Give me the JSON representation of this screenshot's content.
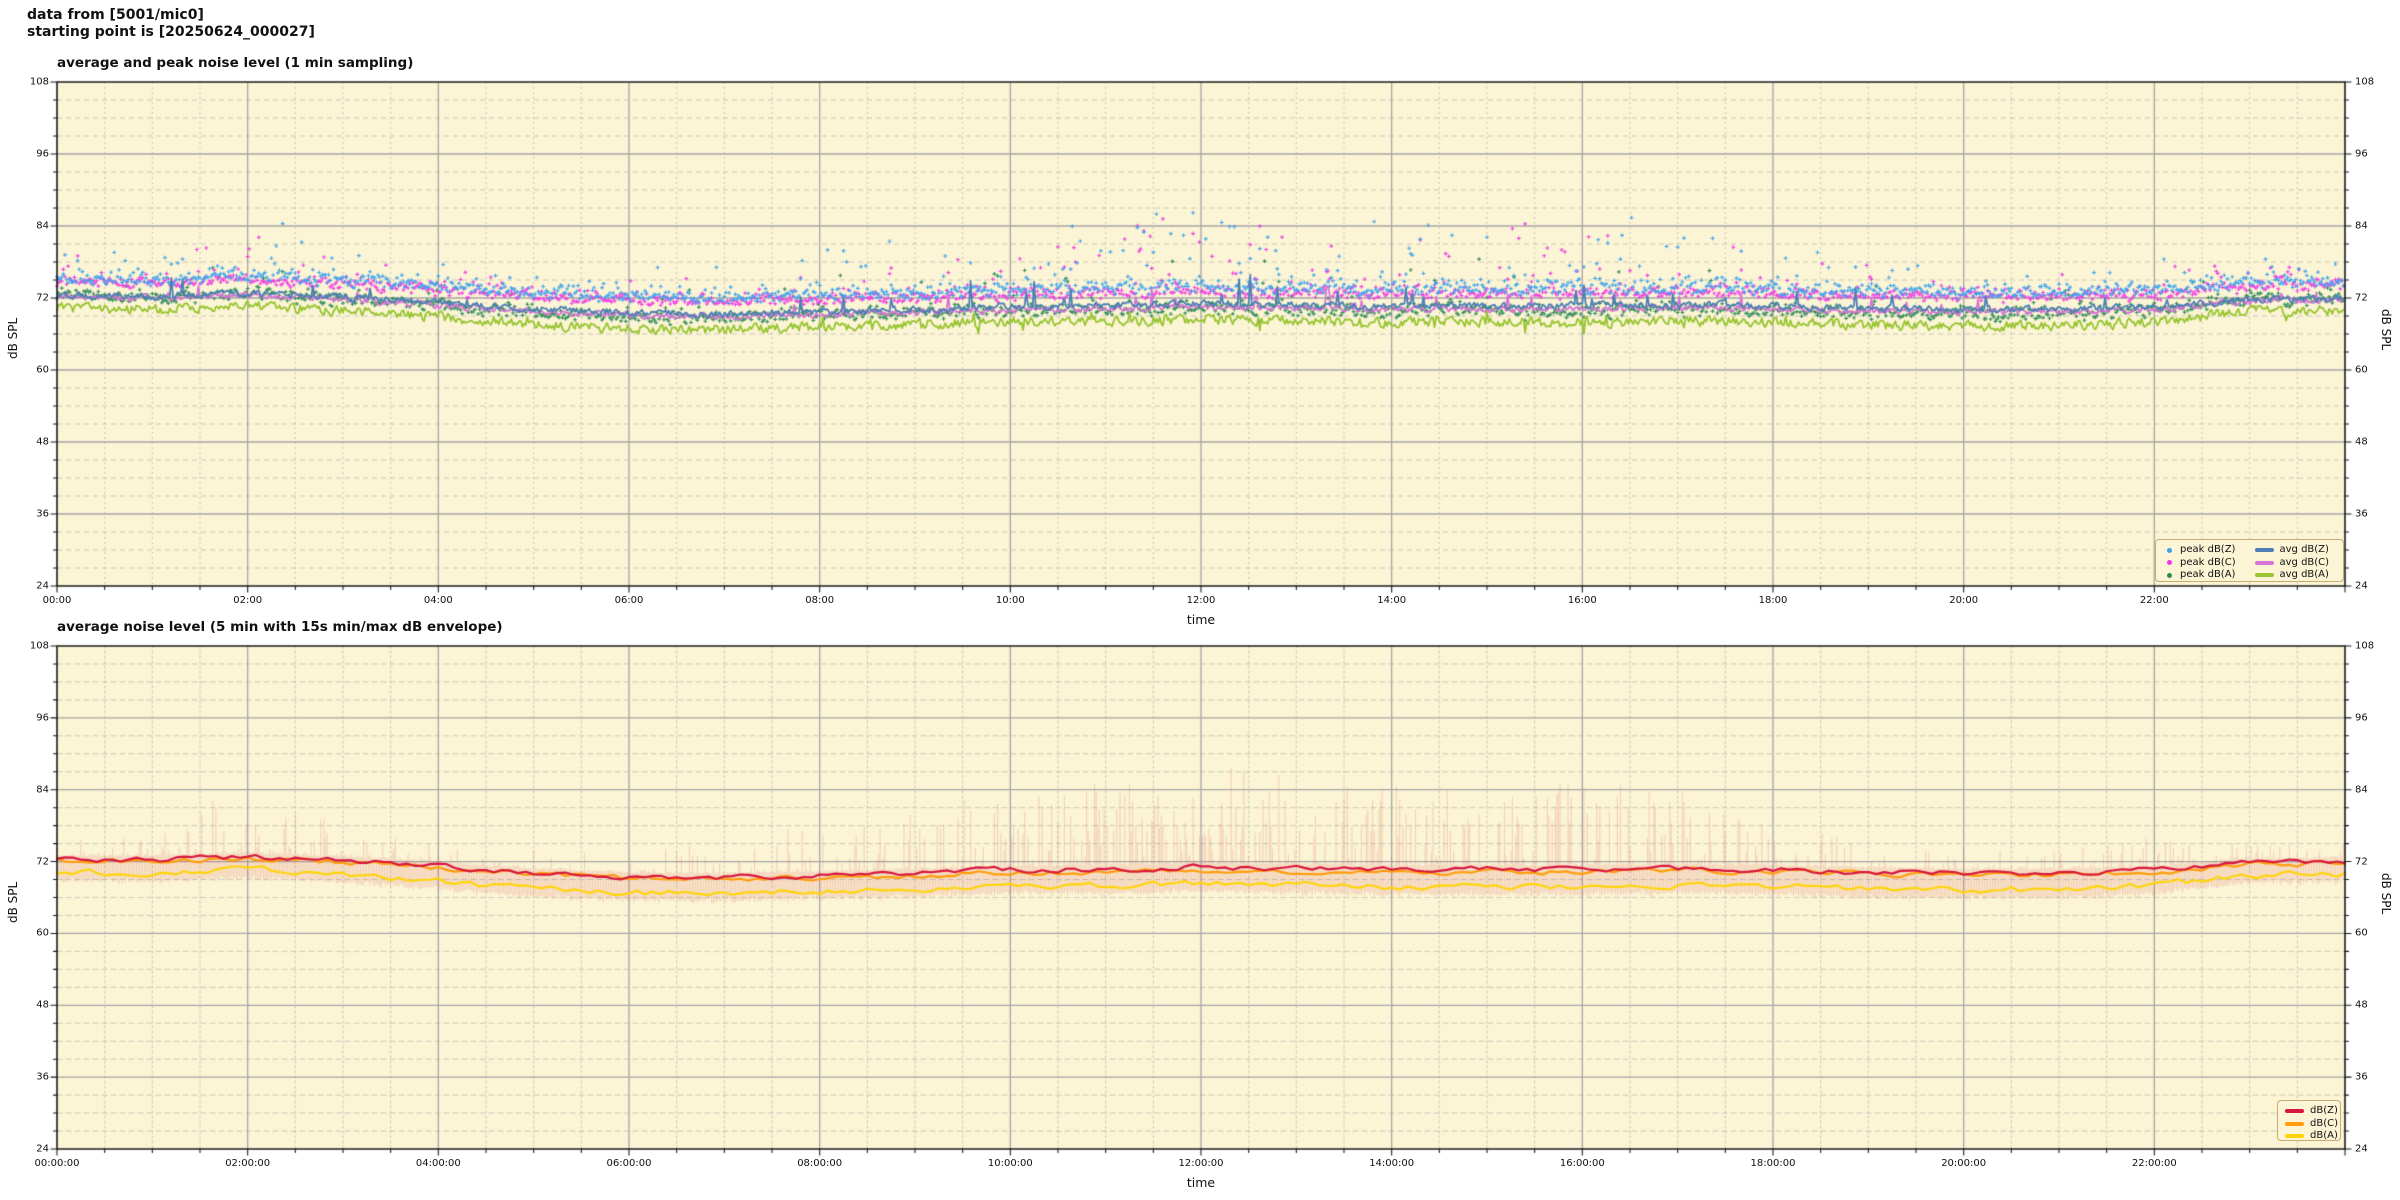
{
  "header": {
    "line1": "data from [5001/mic0]",
    "line2": "starting point is [20250624_000027]"
  },
  "chart_data": [
    {
      "type": "scatter+line",
      "title": "average and peak noise level (1 min sampling)",
      "xlabel": "time",
      "ylabel_left": "dB SPL",
      "ylabel_right": "dB SPL",
      "x_unit": "hours",
      "xlim": [
        0,
        24
      ],
      "ylim": [
        24,
        108
      ],
      "yticks": [
        24,
        36,
        48,
        60,
        72,
        84,
        96,
        108
      ],
      "y_minor_step": 3,
      "xtick_hours": [
        0,
        2,
        4,
        6,
        8,
        10,
        12,
        14,
        16,
        18,
        20,
        22
      ],
      "xtick_labels": [
        "00:00",
        "02:00",
        "04:00",
        "06:00",
        "08:00",
        "10:00",
        "12:00",
        "14:00",
        "16:00",
        "18:00",
        "20:00",
        "22:00"
      ],
      "x_minor_minutes": 30,
      "grid": true,
      "anchor_hours": [
        0,
        1,
        2,
        3,
        4,
        5,
        6,
        7,
        8,
        9,
        10,
        11,
        12,
        13,
        14,
        15,
        16,
        17,
        18,
        19,
        20,
        21,
        22,
        23,
        24
      ],
      "activity_by_hour": [
        0.32,
        0.34,
        0.5,
        0.3,
        0.22,
        0.16,
        0.22,
        0.3,
        0.42,
        0.6,
        0.78,
        0.78,
        0.95,
        0.88,
        0.82,
        0.8,
        0.88,
        0.7,
        0.5,
        0.38,
        0.32,
        0.32,
        0.42,
        0.36,
        0.34
      ],
      "series": [
        {
          "name": "avg dB(Z)",
          "type": "line",
          "color": "#4c80b4",
          "hourly_dB": [
            72.4,
            72.3,
            72.8,
            72.2,
            71.2,
            70.2,
            69.5,
            69.4,
            69.7,
            70.1,
            70.6,
            70.7,
            71.1,
            70.9,
            70.7,
            70.7,
            70.7,
            70.9,
            70.7,
            70.3,
            70.1,
            70.1,
            70.5,
            71.8,
            71.9
          ]
        },
        {
          "name": "avg dB(C)",
          "type": "line",
          "color": "#d973d6",
          "hourly_dB": [
            72.1,
            72.0,
            72.4,
            71.8,
            70.8,
            69.8,
            69.1,
            69.0,
            69.2,
            69.6,
            70.0,
            70.1,
            70.5,
            70.3,
            70.1,
            70.1,
            70.1,
            70.3,
            70.2,
            69.8,
            69.7,
            69.7,
            70.1,
            71.5,
            71.6
          ]
        },
        {
          "name": "avg dB(A)",
          "type": "line",
          "color": "#98c531",
          "hourly_dB": [
            70.3,
            70.1,
            70.7,
            69.9,
            68.8,
            67.6,
            66.9,
            66.8,
            67.2,
            67.6,
            68.1,
            68.1,
            68.5,
            68.2,
            67.9,
            68.0,
            67.9,
            68.2,
            68.0,
            67.5,
            67.3,
            67.4,
            68.0,
            69.9,
            70.0
          ]
        },
        {
          "name": "peak dB(Z)",
          "type": "scatter",
          "color": "#3da2ec",
          "hourly_typical_dB": [
            75.2,
            75.1,
            75.6,
            75.0,
            74.0,
            73.0,
            72.3,
            72.2,
            72.5,
            73.1,
            73.8,
            73.9,
            74.5,
            74.3,
            74.1,
            74.1,
            74.1,
            74.3,
            74.0,
            73.3,
            72.9,
            72.9,
            73.3,
            74.6,
            74.7
          ],
          "hourly_max_dB": [
            80,
            81,
            87,
            80,
            78,
            76,
            77,
            78,
            82,
            85,
            86,
            86,
            88,
            87,
            86,
            86,
            87,
            85,
            82,
            79,
            77,
            77,
            80,
            79,
            78
          ]
        },
        {
          "name": "peak dB(C)",
          "type": "scatter",
          "color": "#ef3be4",
          "hourly_typical_dB": [
            74.5,
            74.4,
            74.8,
            74.2,
            73.2,
            72.2,
            71.5,
            71.4,
            71.6,
            72.0,
            72.4,
            72.5,
            72.9,
            72.7,
            72.5,
            72.5,
            72.5,
            72.7,
            72.6,
            72.2,
            72.1,
            72.1,
            72.5,
            73.9,
            74.0
          ],
          "hourly_max_dB": [
            79,
            80,
            86,
            79,
            77,
            75,
            76,
            77,
            81,
            83,
            84,
            84,
            86,
            85,
            84,
            84,
            85,
            83,
            80,
            78,
            76,
            76,
            79,
            78,
            77
          ]
        },
        {
          "name": "peak dB(A)",
          "type": "scatter",
          "color": "#2e8b57",
          "hourly_typical_dB": [
            72.1,
            71.9,
            72.5,
            71.7,
            70.6,
            69.4,
            68.7,
            68.6,
            69.0,
            69.4,
            69.9,
            69.9,
            70.3,
            70.0,
            69.7,
            69.8,
            69.7,
            70.0,
            69.8,
            69.3,
            69.1,
            69.2,
            69.8,
            71.7,
            71.8
          ],
          "hourly_max_dB": [
            76,
            76,
            78,
            75,
            74,
            73,
            73,
            74,
            76,
            78,
            79,
            79,
            80,
            79,
            79,
            79,
            79,
            78,
            77,
            75,
            74,
            74,
            76,
            75,
            75
          ]
        }
      ],
      "legend": {
        "position": "lower right",
        "entries": [
          {
            "label": "peak dB(Z)",
            "marker": "dot",
            "color": "#3da2ec"
          },
          {
            "label": "peak dB(C)",
            "marker": "dot",
            "color": "#ef3be4"
          },
          {
            "label": "peak dB(A)",
            "marker": "dot",
            "color": "#2e8b57"
          },
          {
            "label": "avg dB(Z)",
            "marker": "line",
            "color": "#4c80b4"
          },
          {
            "label": "avg dB(C)",
            "marker": "line",
            "color": "#d973d6"
          },
          {
            "label": "avg dB(A)",
            "marker": "line",
            "color": "#98c531"
          }
        ]
      }
    },
    {
      "type": "line+envelope",
      "title": "average noise level (5 min with 15s min/max dB envelope)",
      "xlabel": "time",
      "ylabel_left": "dB SPL",
      "ylabel_right": "dB SPL",
      "x_unit": "hours",
      "xlim": [
        0,
        24
      ],
      "ylim": [
        24,
        108
      ],
      "yticks": [
        24,
        36,
        48,
        60,
        72,
        84,
        96,
        108
      ],
      "y_minor_step": 3,
      "xtick_hours": [
        0,
        2,
        4,
        6,
        8,
        10,
        12,
        14,
        16,
        18,
        20,
        22
      ],
      "xtick_labels": [
        "00:00:00",
        "02:00:00",
        "04:00:00",
        "06:00:00",
        "08:00:00",
        "10:00:00",
        "12:00:00",
        "14:00:00",
        "16:00:00",
        "18:00:00",
        "20:00:00",
        "22:00:00"
      ],
      "x_minor_minutes": 30,
      "grid": true,
      "anchor_hours": [
        0,
        1,
        2,
        3,
        4,
        5,
        6,
        7,
        8,
        9,
        10,
        11,
        12,
        13,
        14,
        15,
        16,
        17,
        18,
        19,
        20,
        21,
        22,
        23,
        24
      ],
      "activity_by_hour": [
        0.32,
        0.34,
        0.5,
        0.3,
        0.22,
        0.16,
        0.22,
        0.3,
        0.42,
        0.6,
        0.78,
        0.78,
        0.95,
        0.88,
        0.82,
        0.8,
        0.88,
        0.7,
        0.5,
        0.38,
        0.32,
        0.32,
        0.42,
        0.36,
        0.34
      ],
      "series": [
        {
          "name": "dB(Z)",
          "type": "line",
          "color": "#d8173f",
          "hourly_dB": [
            72.4,
            72.3,
            72.8,
            72.2,
            71.2,
            70.2,
            69.5,
            69.4,
            69.7,
            70.1,
            70.6,
            70.7,
            71.1,
            70.9,
            70.7,
            70.7,
            70.7,
            70.9,
            70.7,
            70.3,
            70.1,
            70.1,
            70.5,
            71.8,
            71.9
          ]
        },
        {
          "name": "dB(C)",
          "type": "line",
          "color": "#ff9e0a",
          "hourly_dB": [
            72.2,
            72.1,
            72.5,
            71.9,
            70.9,
            69.9,
            69.2,
            69.1,
            69.3,
            69.7,
            70.1,
            70.2,
            70.6,
            70.4,
            70.2,
            70.2,
            70.2,
            70.4,
            70.3,
            69.9,
            69.8,
            69.8,
            70.2,
            71.6,
            71.7
          ]
        },
        {
          "name": "dB(A)",
          "type": "line",
          "color": "#ffd40a",
          "hourly_dB": [
            70.2,
            70.0,
            70.6,
            69.8,
            68.7,
            67.5,
            66.8,
            66.7,
            67.1,
            67.5,
            68.0,
            68.0,
            68.4,
            68.1,
            67.8,
            67.9,
            67.8,
            68.1,
            67.9,
            67.4,
            67.2,
            67.3,
            67.9,
            69.8,
            69.9
          ]
        }
      ],
      "envelope": {
        "name": "15s min/max dB",
        "color": "#dc143c",
        "opacity": 0.2,
        "hourly_max_dB": [
          76,
          76,
          86,
          78,
          75,
          74,
          74,
          75,
          79,
          83,
          85,
          85,
          88,
          87,
          85,
          84,
          86,
          84,
          78,
          76,
          74,
          74,
          76,
          75,
          75
        ],
        "hourly_min_dB": [
          69.0,
          68.8,
          69.4,
          68.6,
          67.5,
          66.3,
          65.6,
          65.5,
          65.9,
          66.3,
          66.8,
          66.8,
          67.2,
          66.9,
          66.6,
          66.7,
          66.6,
          66.9,
          66.7,
          66.2,
          66.0,
          66.1,
          66.7,
          68.6,
          68.7
        ]
      },
      "legend": {
        "position": "lower right",
        "entries": [
          {
            "label": "dB(Z)",
            "marker": "line",
            "color": "#d8173f"
          },
          {
            "label": "dB(C)",
            "marker": "line",
            "color": "#ff9e0a"
          },
          {
            "label": "dB(A)",
            "marker": "line",
            "color": "#ffd40a"
          }
        ]
      }
    }
  ],
  "style": {
    "plot_background": "#fbf4d5",
    "figure_background": "#ffffff",
    "grid_major_color": "#a6a6a6",
    "grid_minor_color": "#b5b5ab"
  }
}
